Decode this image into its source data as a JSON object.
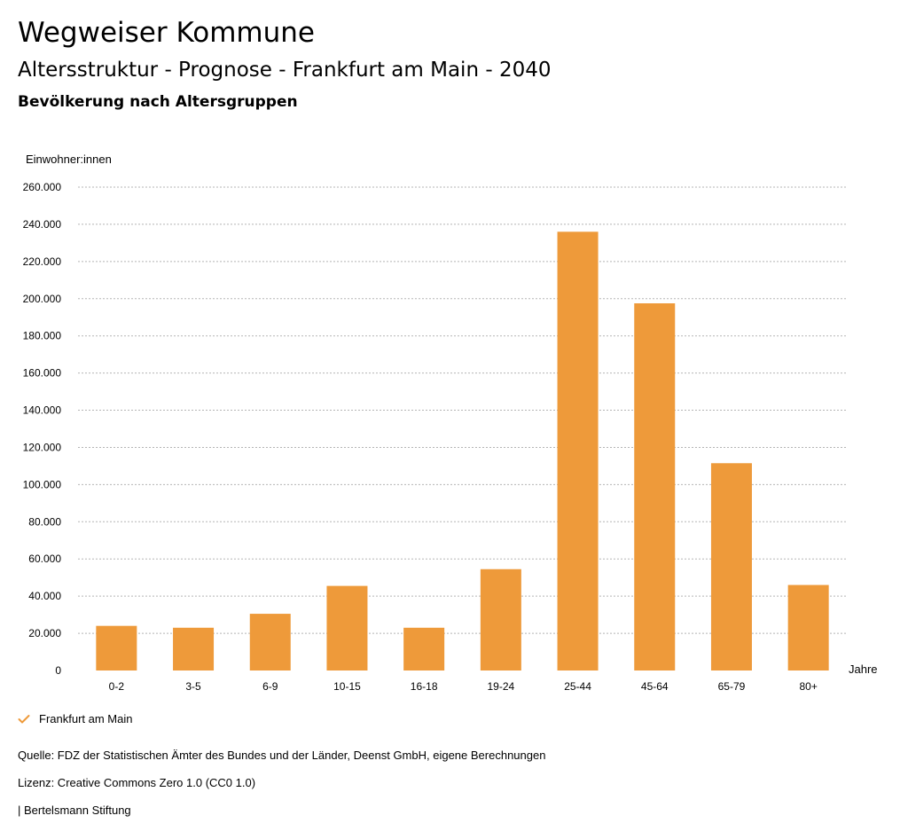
{
  "header": {
    "title": "Wegweiser Kommune",
    "subtitle": "Altersstruktur - Prognose - Frankfurt am Main - 2040",
    "chart_title": "Bevölkerung nach Altersgruppen"
  },
  "chart_data": {
    "type": "bar",
    "title": "Bevölkerung nach Altersgruppen",
    "ylabel": "Einwohner:innen",
    "xlabel": "Jahre",
    "ylim": [
      0,
      260000
    ],
    "yticks": [
      0,
      20000,
      40000,
      60000,
      80000,
      100000,
      120000,
      140000,
      160000,
      180000,
      200000,
      220000,
      240000,
      260000
    ],
    "ytick_labels": [
      "0",
      "20.000",
      "40.000",
      "60.000",
      "80.000",
      "100.000",
      "120.000",
      "140.000",
      "160.000",
      "180.000",
      "200.000",
      "220.000",
      "240.000",
      "260.000"
    ],
    "grid": true,
    "categories": [
      "0-2",
      "3-5",
      "6-9",
      "10-15",
      "16-18",
      "19-24",
      "25-44",
      "45-64",
      "65-79",
      "80+"
    ],
    "series": [
      {
        "name": "Frankfurt am Main",
        "values": [
          24000,
          23000,
          30500,
          45500,
          23000,
          54500,
          236000,
          197500,
          111500,
          46000
        ],
        "color": "#ee9a3a"
      }
    ]
  },
  "legend": {
    "label": "Frankfurt am Main",
    "icon": "check-icon",
    "color": "#ee9a3a"
  },
  "footer": {
    "source": "Quelle: FDZ der Statistischen Ämter des Bundes und der Länder, Deenst GmbH, eigene Berechnungen",
    "license": "Lizenz: Creative Commons Zero 1.0 (CC0 1.0)",
    "brand": "| Bertelsmann Stiftung"
  }
}
